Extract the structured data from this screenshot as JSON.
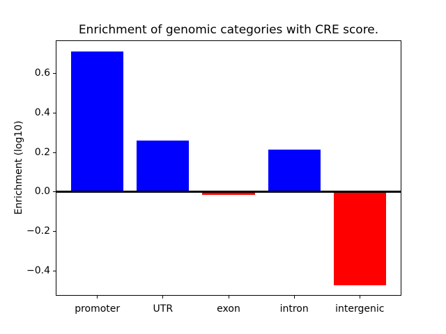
{
  "chart_data": {
    "type": "bar",
    "title": "Enrichment of genomic categories with CRE score.",
    "xlabel": "",
    "ylabel": "Enrichment (log10)",
    "categories": [
      "promoter",
      "UTR",
      "exon",
      "intron",
      "intergenic"
    ],
    "values": [
      0.71,
      0.26,
      -0.015,
      0.215,
      -0.47
    ],
    "bar_colors": [
      "#0000ff",
      "#0000ff",
      "#ff0000",
      "#0000ff",
      "#ff0000"
    ],
    "positive_color": "#0000ff",
    "negative_color": "#ff0000",
    "bar_width": 0.8,
    "xlim": [
      -0.634,
      4.634
    ],
    "ylim": [
      -0.524,
      0.766
    ],
    "yticks": [
      {
        "value": 0.6,
        "label": "0.6"
      },
      {
        "value": 0.4,
        "label": "0.4"
      },
      {
        "value": 0.2,
        "label": "0.2"
      },
      {
        "value": 0.0,
        "label": "0.0"
      },
      {
        "value": -0.2,
        "label": "−0.2"
      },
      {
        "value": -0.4,
        "label": "−0.4"
      }
    ],
    "zero_line": {
      "color": "#000000",
      "thickness_px": 3
    },
    "grid": false,
    "legend": false,
    "axes_color": "#000000",
    "text_color": "#000000",
    "background": "#ffffff"
  }
}
